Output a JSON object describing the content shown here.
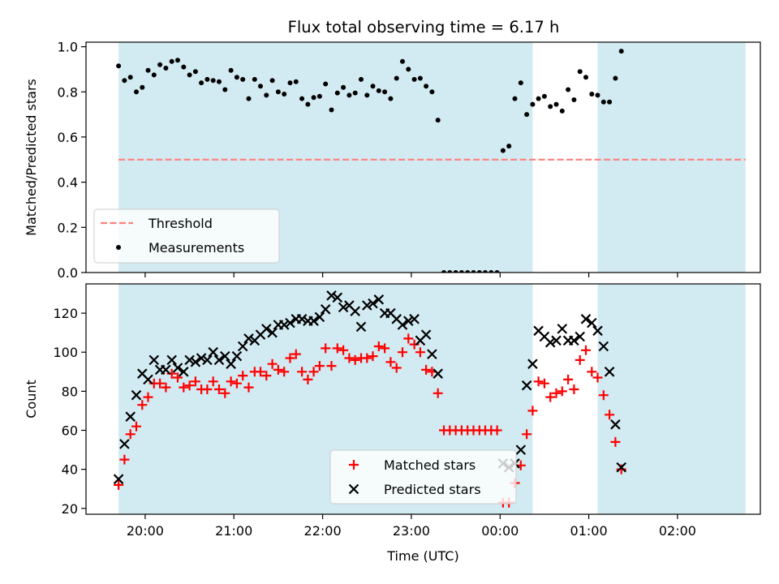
{
  "title": "Flux total observing time = 6.17 h",
  "colors": {
    "span": "#add8e6",
    "threshold": "#ff7f7f",
    "measurement": "#000000",
    "matched": "#ff0000",
    "predicted": "#000000"
  },
  "chart_data": [
    {
      "type": "scatter",
      "ylabel": "Matched/Predicted stars",
      "ylim": [
        0,
        1.02
      ],
      "yticks": [
        0.0,
        0.2,
        0.4,
        0.6,
        0.8,
        1.0
      ],
      "ytick_labels": [
        "0.0",
        "0.2",
        "0.4",
        "0.6",
        "0.8",
        "1.0"
      ],
      "xlim": [
        "19:20",
        "02:56"
      ],
      "xticks": [
        "20:00",
        "21:00",
        "22:00",
        "23:00",
        "00:00",
        "01:00",
        "02:00"
      ],
      "shaded_intervals": [
        [
          "19:42",
          "00:22"
        ],
        [
          "01:06",
          "02:46"
        ]
      ],
      "legend": {
        "position": "lower-left",
        "entries": [
          "Threshold",
          "Measurements"
        ]
      },
      "threshold": {
        "name": "Threshold",
        "value": 0.5,
        "style": "dashed"
      },
      "series": [
        {
          "name": "Measurements",
          "marker": "dot",
          "points": [
            [
              "19:42",
              0.915
            ],
            [
              "19:46",
              0.85
            ],
            [
              "19:50",
              0.865
            ],
            [
              "19:54",
              0.8
            ],
            [
              "19:58",
              0.82
            ],
            [
              "20:02",
              0.895
            ],
            [
              "20:06",
              0.875
            ],
            [
              "20:10",
              0.92
            ],
            [
              "20:14",
              0.905
            ],
            [
              "20:18",
              0.935
            ],
            [
              "20:22",
              0.94
            ],
            [
              "20:26",
              0.91
            ],
            [
              "20:30",
              0.875
            ],
            [
              "20:34",
              0.89
            ],
            [
              "20:38",
              0.84
            ],
            [
              "20:42",
              0.855
            ],
            [
              "20:46",
              0.85
            ],
            [
              "20:50",
              0.845
            ],
            [
              "20:54",
              0.81
            ],
            [
              "20:58",
              0.895
            ],
            [
              "21:02",
              0.865
            ],
            [
              "21:06",
              0.855
            ],
            [
              "21:10",
              0.77
            ],
            [
              "21:14",
              0.855
            ],
            [
              "21:18",
              0.825
            ],
            [
              "21:22",
              0.785
            ],
            [
              "21:26",
              0.85
            ],
            [
              "21:30",
              0.8
            ],
            [
              "21:34",
              0.79
            ],
            [
              "21:38",
              0.84
            ],
            [
              "21:42",
              0.845
            ],
            [
              "21:46",
              0.77
            ],
            [
              "21:50",
              0.745
            ],
            [
              "21:54",
              0.775
            ],
            [
              "21:58",
              0.78
            ],
            [
              "22:02",
              0.835
            ],
            [
              "22:06",
              0.72
            ],
            [
              "22:10",
              0.795
            ],
            [
              "22:14",
              0.82
            ],
            [
              "22:18",
              0.785
            ],
            [
              "22:22",
              0.795
            ],
            [
              "22:26",
              0.855
            ],
            [
              "22:30",
              0.785
            ],
            [
              "22:34",
              0.825
            ],
            [
              "22:38",
              0.805
            ],
            [
              "22:42",
              0.8
            ],
            [
              "22:46",
              0.77
            ],
            [
              "22:50",
              0.86
            ],
            [
              "22:54",
              0.935
            ],
            [
              "22:58",
              0.9
            ],
            [
              "23:02",
              0.855
            ],
            [
              "23:06",
              0.86
            ],
            [
              "23:10",
              0.825
            ],
            [
              "23:14",
              0.8
            ],
            [
              "23:18",
              0.675
            ],
            [
              "23:22",
              0.0
            ],
            [
              "23:26",
              0.0
            ],
            [
              "23:30",
              0.0
            ],
            [
              "23:34",
              0.0
            ],
            [
              "23:38",
              0.0
            ],
            [
              "23:42",
              0.0
            ],
            [
              "23:46",
              0.0
            ],
            [
              "23:50",
              0.0
            ],
            [
              "23:54",
              0.0
            ],
            [
              "23:58",
              0.0
            ],
            [
              "00:02",
              0.54
            ],
            [
              "00:06",
              0.56
            ],
            [
              "00:10",
              0.77
            ],
            [
              "00:14",
              0.84
            ],
            [
              "00:18",
              0.7
            ],
            [
              "00:22",
              0.745
            ],
            [
              "00:26",
              0.77
            ],
            [
              "00:30",
              0.78
            ],
            [
              "00:34",
              0.735
            ],
            [
              "00:38",
              0.745
            ],
            [
              "00:42",
              0.715
            ],
            [
              "00:46",
              0.81
            ],
            [
              "00:50",
              0.765
            ],
            [
              "00:54",
              0.89
            ],
            [
              "00:58",
              0.865
            ],
            [
              "01:02",
              0.79
            ],
            [
              "01:06",
              0.785
            ],
            [
              "01:10",
              0.755
            ],
            [
              "01:14",
              0.755
            ],
            [
              "01:18",
              0.86
            ],
            [
              "01:22",
              0.98
            ]
          ]
        }
      ]
    },
    {
      "type": "scatter",
      "xlabel": "Time (UTC)",
      "ylabel": "Count",
      "ylim": [
        17,
        135
      ],
      "yticks": [
        20,
        40,
        60,
        80,
        100,
        120
      ],
      "ytick_labels": [
        "20",
        "40",
        "60",
        "80",
        "100",
        "120"
      ],
      "xlim": [
        "19:20",
        "02:56"
      ],
      "xticks": [
        "20:00",
        "21:00",
        "22:00",
        "23:00",
        "00:00",
        "01:00",
        "02:00"
      ],
      "shaded_intervals": [
        [
          "19:42",
          "00:22"
        ],
        [
          "01:06",
          "02:46"
        ]
      ],
      "legend": {
        "position": "bottom-center",
        "entries": [
          "Matched stars",
          "Predicted stars"
        ]
      },
      "series": [
        {
          "name": "Matched stars",
          "marker": "plus",
          "points": [
            [
              "19:42",
              32
            ],
            [
              "19:46",
              45
            ],
            [
              "19:50",
              58
            ],
            [
              "19:54",
              62
            ],
            [
              "19:58",
              73
            ],
            [
              "20:02",
              77
            ],
            [
              "20:06",
              84
            ],
            [
              "20:10",
              84
            ],
            [
              "20:14",
              82
            ],
            [
              "20:18",
              89
            ],
            [
              "20:22",
              87
            ],
            [
              "20:26",
              82
            ],
            [
              "20:30",
              83
            ],
            [
              "20:34",
              85
            ],
            [
              "20:38",
              81
            ],
            [
              "20:42",
              81
            ],
            [
              "20:46",
              85
            ],
            [
              "20:50",
              81
            ],
            [
              "20:54",
              79
            ],
            [
              "20:58",
              85
            ],
            [
              "21:02",
              84
            ],
            [
              "21:06",
              88
            ],
            [
              "21:10",
              82
            ],
            [
              "21:14",
              90
            ],
            [
              "21:18",
              90
            ],
            [
              "21:22",
              88
            ],
            [
              "21:26",
              94
            ],
            [
              "21:30",
              91
            ],
            [
              "21:34",
              90
            ],
            [
              "21:38",
              97
            ],
            [
              "21:42",
              99
            ],
            [
              "21:46",
              90
            ],
            [
              "21:50",
              86
            ],
            [
              "21:54",
              90
            ],
            [
              "21:58",
              93
            ],
            [
              "22:02",
              102
            ],
            [
              "22:06",
              93
            ],
            [
              "22:10",
              102
            ],
            [
              "22:14",
              101
            ],
            [
              "22:18",
              97
            ],
            [
              "22:22",
              96
            ],
            [
              "22:26",
              97
            ],
            [
              "22:30",
              97
            ],
            [
              "22:34",
              98
            ],
            [
              "22:38",
              103
            ],
            [
              "22:42",
              102
            ],
            [
              "22:46",
              95
            ],
            [
              "22:50",
              92
            ],
            [
              "22:54",
              100
            ],
            [
              "22:58",
              107
            ],
            [
              "23:02",
              104
            ],
            [
              "23:06",
              100
            ],
            [
              "23:10",
              91
            ],
            [
              "23:14",
              90
            ],
            [
              "23:18",
              79
            ],
            [
              "23:22",
              60
            ],
            [
              "23:26",
              60
            ],
            [
              "23:30",
              60
            ],
            [
              "23:34",
              60
            ],
            [
              "23:38",
              60
            ],
            [
              "23:42",
              60
            ],
            [
              "23:46",
              60
            ],
            [
              "23:50",
              60
            ],
            [
              "23:54",
              60
            ],
            [
              "23:58",
              60
            ],
            [
              "00:02",
              23
            ],
            [
              "00:06",
              23
            ],
            [
              "00:10",
              33
            ],
            [
              "00:14",
              42
            ],
            [
              "00:18",
              58
            ],
            [
              "00:22",
              70
            ],
            [
              "00:26",
              85
            ],
            [
              "00:30",
              84
            ],
            [
              "00:34",
              77
            ],
            [
              "00:38",
              79
            ],
            [
              "00:42",
              80
            ],
            [
              "00:46",
              86
            ],
            [
              "00:50",
              81
            ],
            [
              "00:54",
              96
            ],
            [
              "00:58",
              101
            ],
            [
              "01:02",
              90
            ],
            [
              "01:06",
              87
            ],
            [
              "01:10",
              78
            ],
            [
              "01:14",
              68
            ],
            [
              "01:18",
              54
            ],
            [
              "01:22",
              40
            ]
          ]
        },
        {
          "name": "Predicted stars",
          "marker": "x",
          "points": [
            [
              "19:42",
              35
            ],
            [
              "19:46",
              53
            ],
            [
              "19:50",
              67
            ],
            [
              "19:54",
              78
            ],
            [
              "19:58",
              89
            ],
            [
              "20:02",
              86
            ],
            [
              "20:06",
              96
            ],
            [
              "20:10",
              91
            ],
            [
              "20:14",
              91
            ],
            [
              "20:18",
              96
            ],
            [
              "20:22",
              92
            ],
            [
              "20:26",
              90
            ],
            [
              "20:30",
              96
            ],
            [
              "20:34",
              95
            ],
            [
              "20:38",
              97
            ],
            [
              "20:42",
              96
            ],
            [
              "20:46",
              100
            ],
            [
              "20:50",
              96
            ],
            [
              "20:54",
              98
            ],
            [
              "20:58",
              94
            ],
            [
              "21:02",
              98
            ],
            [
              "21:06",
              103
            ],
            [
              "21:10",
              107
            ],
            [
              "21:14",
              106
            ],
            [
              "21:18",
              109
            ],
            [
              "21:22",
              112
            ],
            [
              "21:26",
              110
            ],
            [
              "21:30",
              114
            ],
            [
              "21:34",
              114
            ],
            [
              "21:38",
              115
            ],
            [
              "21:42",
              117
            ],
            [
              "21:46",
              117
            ],
            [
              "21:50",
              116
            ],
            [
              "21:54",
              116
            ],
            [
              "21:58",
              118
            ],
            [
              "22:02",
              122
            ],
            [
              "22:06",
              129
            ],
            [
              "22:10",
              128
            ],
            [
              "22:14",
              123
            ],
            [
              "22:18",
              124
            ],
            [
              "22:22",
              121
            ],
            [
              "22:26",
              113
            ],
            [
              "22:30",
              124
            ],
            [
              "22:34",
              125
            ],
            [
              "22:38",
              127
            ],
            [
              "22:42",
              120
            ],
            [
              "22:46",
              120
            ],
            [
              "22:50",
              117
            ],
            [
              "22:54",
              114
            ],
            [
              "22:58",
              116
            ],
            [
              "23:02",
              117
            ],
            [
              "23:06",
              106
            ],
            [
              "23:10",
              109
            ],
            [
              "23:14",
              99
            ],
            [
              "23:18",
              89
            ],
            [
              "00:02",
              43
            ],
            [
              "00:06",
              41
            ],
            [
              "00:10",
              43
            ],
            [
              "00:14",
              50
            ],
            [
              "00:18",
              83
            ],
            [
              "00:22",
              94
            ],
            [
              "00:26",
              111
            ],
            [
              "00:30",
              108
            ],
            [
              "00:34",
              105
            ],
            [
              "00:38",
              106
            ],
            [
              "00:42",
              112
            ],
            [
              "00:46",
              106
            ],
            [
              "00:50",
              106
            ],
            [
              "00:54",
              108
            ],
            [
              "00:58",
              117
            ],
            [
              "01:02",
              115
            ],
            [
              "01:06",
              111
            ],
            [
              "01:10",
              103
            ],
            [
              "01:14",
              90
            ],
            [
              "01:18",
              63
            ],
            [
              "01:22",
              41
            ]
          ]
        }
      ]
    }
  ]
}
